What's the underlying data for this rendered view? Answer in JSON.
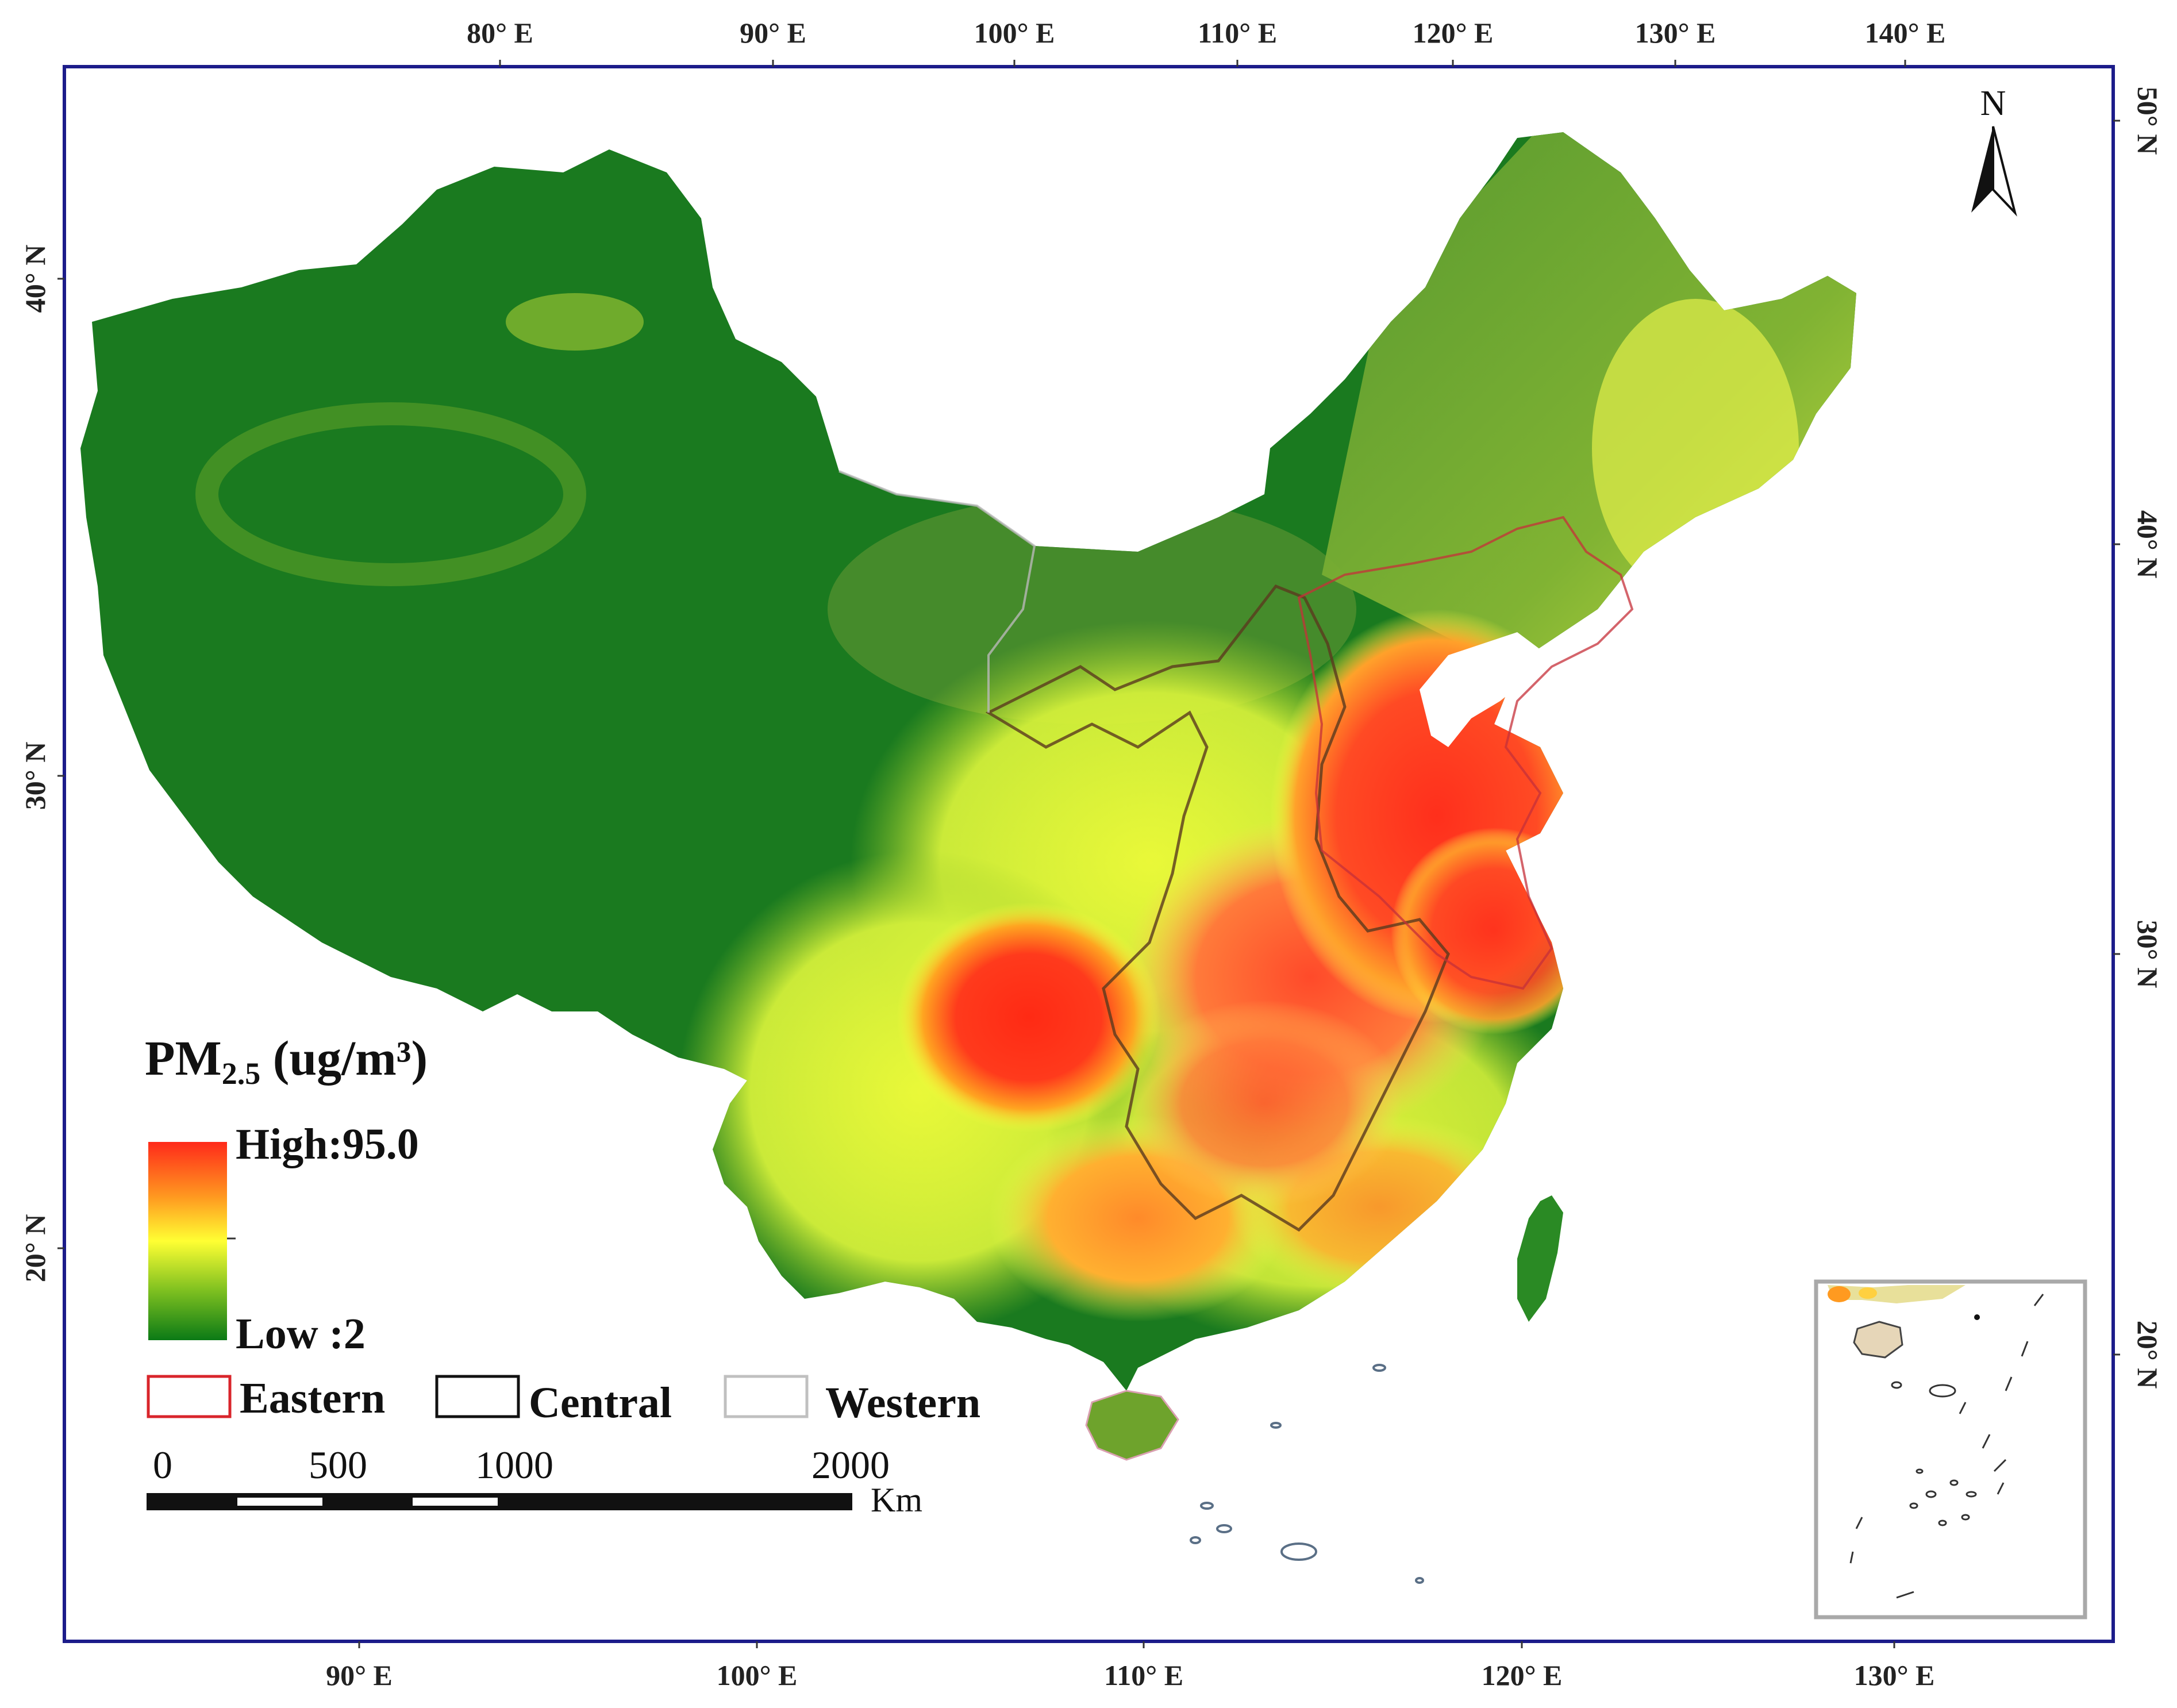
{
  "axes": {
    "top_ticks": [
      "80° E",
      "90° E",
      "100° E",
      "110° E",
      "120° E",
      "130° E",
      "140° E"
    ],
    "bottom_ticks": [
      "90° E",
      "100° E",
      "110° E",
      "120° E",
      "130° E"
    ],
    "left_ticks": [
      "40° N",
      "30° N",
      "20° N"
    ],
    "right_ticks": [
      "50° N",
      "40° N",
      "30° N",
      "20° N"
    ]
  },
  "north_arrow": {
    "label": "N",
    "icon": "north-arrow-icon"
  },
  "legend": {
    "title_main": "PM",
    "title_sub": "2.5",
    "title_unit": " (ug/m³)",
    "high_label": "High:95.0",
    "low_label": "Low :2",
    "colors": {
      "high": "#ff2a1a",
      "mid_high": "#ff9a20",
      "mid": "#ffff33",
      "mid_low": "#7ec020",
      "low": "#0b7a16"
    },
    "regions": [
      {
        "label": "Eastern",
        "color": "#d9252b"
      },
      {
        "label": "Central",
        "color": "#111111"
      },
      {
        "label": "Western",
        "color": "#c0c0c0"
      }
    ]
  },
  "scale_bar": {
    "ticks": [
      "0",
      "500",
      "1000",
      "2000"
    ],
    "unit": "Km"
  },
  "colors": {
    "frame": "#1c1c8a",
    "inset_frame": "#a9a9a9",
    "west_green": "#1a7a1f",
    "hotspot": "#ff2a1a"
  }
}
